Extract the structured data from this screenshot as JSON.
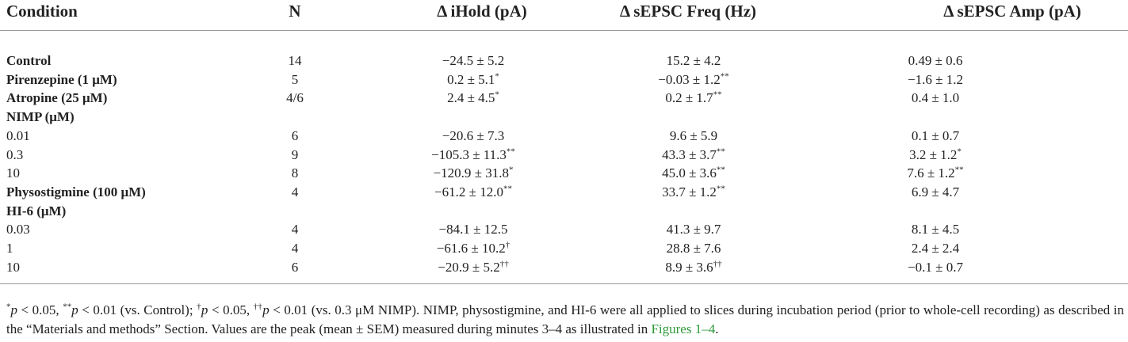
{
  "table": {
    "header": [
      "Condition",
      "N",
      "Δ iHold (pA)",
      "Δ sEPSC Freq (Hz)",
      "Δ sEPSC Amp (pA)"
    ],
    "rows": [
      {
        "condition": "Control",
        "bold": true,
        "cells": [
          "14",
          {
            "text": "−24.5 ± 5.2"
          },
          {
            "text": "15.2 ± 4.2"
          },
          {
            "text": "0.49 ± 0.6"
          }
        ]
      },
      {
        "condition": "Pirenzepine (1 μM)",
        "bold": true,
        "cells": [
          "5",
          {
            "text": "0.2 ± 5.1",
            "sup": "*"
          },
          {
            "text": "−0.03 ± 1.2",
            "sup": "**"
          },
          {
            "text": "−1.6 ± 1.2"
          }
        ]
      },
      {
        "condition": "Atropine (25 μM)",
        "bold": true,
        "cells": [
          "4/6",
          {
            "text": "2.4 ± 4.5",
            "sup": "*"
          },
          {
            "text": "0.2 ± 1.7",
            "sup": "**"
          },
          {
            "text": "0.4 ± 1.0"
          }
        ]
      },
      {
        "condition": "NIMP (μM)",
        "bold": true,
        "cells": []
      },
      {
        "condition": "0.01",
        "cells": [
          "6",
          {
            "text": "−20.6 ± 7.3"
          },
          {
            "text": "9.6 ± 5.9"
          },
          {
            "text": "0.1 ± 0.7"
          }
        ]
      },
      {
        "condition": "0.3",
        "cells": [
          "9",
          {
            "text": "−105.3 ± 11.3",
            "sup": "**"
          },
          {
            "text": "43.3 ± 3.7",
            "sup": "**"
          },
          {
            "text": "3.2 ± 1.2",
            "sup": "*"
          }
        ]
      },
      {
        "condition": "10",
        "cells": [
          "8",
          {
            "text": "−120.9 ± 31.8",
            "sup": "*"
          },
          {
            "text": "45.0 ± 3.6",
            "sup": "**"
          },
          {
            "text": "7.6 ± 1.2",
            "sup": "**"
          }
        ]
      },
      {
        "condition": "Physostigmine (100 μM)",
        "bold": true,
        "cells": [
          "4",
          {
            "text": "−61.2 ± 12.0",
            "sup": "**"
          },
          {
            "text": "33.7 ± 1.2",
            "sup": "**"
          },
          {
            "text": "6.9 ± 4.7"
          }
        ]
      },
      {
        "condition": "HI-6 (μM)",
        "bold": true,
        "cells": []
      },
      {
        "condition": "0.03",
        "cells": [
          "4",
          {
            "text": "−84.1 ± 12.5"
          },
          {
            "text": "41.3 ± 9.7"
          },
          {
            "text": "8.1 ± 4.5"
          }
        ]
      },
      {
        "condition": "1",
        "cells": [
          "4",
          {
            "text": "−61.6 ± 10.2",
            "sup": "†"
          },
          {
            "text": "28.8 ± 7.6"
          },
          {
            "text": "2.4 ± 2.4"
          }
        ]
      },
      {
        "condition": "10",
        "cells": [
          "6",
          {
            "text": "−20.9 ± 5.2",
            "sup": "††"
          },
          {
            "text": "8.9 ± 3.6",
            "sup": "††"
          },
          {
            "text": "−0.1 ± 0.7"
          }
        ]
      }
    ]
  },
  "footnote": [
    {
      "text": "*",
      "style": "sup"
    },
    {
      "text": "p",
      "style": "italic"
    },
    {
      "text": " < 0.05, ",
      "style": "plain"
    },
    {
      "text": "**",
      "style": "sup"
    },
    {
      "text": "p",
      "style": "italic"
    },
    {
      "text": " < 0.01 (vs. Control); ",
      "style": "plain"
    },
    {
      "text": "†",
      "style": "sup"
    },
    {
      "text": "p",
      "style": "italic"
    },
    {
      "text": " < 0.05, ",
      "style": "plain"
    },
    {
      "text": "††",
      "style": "sup"
    },
    {
      "text": "p",
      "style": "italic"
    },
    {
      "text": " < 0.01 (vs. 0.3 μM NIMP). NIMP, physostigmine, and HI-6 were all applied to slices during incubation period (prior to whole-cell recording) as described in the “Materials and methods” Section. Values are the peak (mean ± SEM) measured during minutes 3–4 as illustrated in ",
      "style": "plain"
    },
    {
      "text": "Figures 1–4",
      "style": "link"
    },
    {
      "text": ".",
      "style": "plain"
    }
  ]
}
